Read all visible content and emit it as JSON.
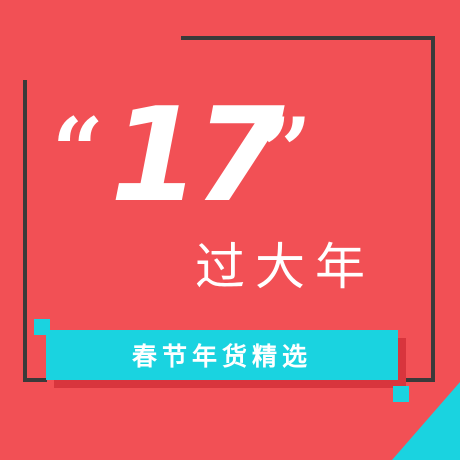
{
  "poster": {
    "quote_open": "“",
    "number": "17",
    "quote_close": "”",
    "subtitle": "过大年",
    "banner_text": "春节年货精选"
  },
  "colors": {
    "background": "#f25055",
    "frame": "#3a3a3a",
    "accent_cyan": "#1ad3e0",
    "banner_shadow": "#d8353d",
    "text": "#ffffff"
  }
}
